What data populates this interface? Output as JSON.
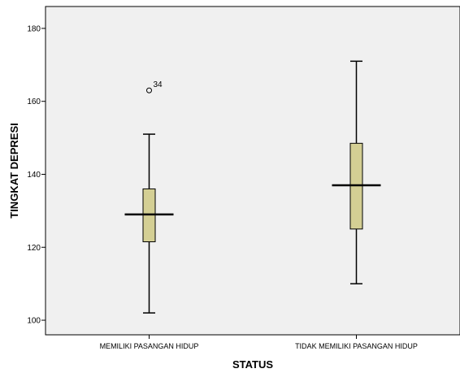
{
  "chart_data": {
    "type": "boxplot",
    "xlabel": "STATUS",
    "ylabel": "TINGKAT DEPRESI",
    "ylim": [
      96,
      186
    ],
    "yticks": [
      100,
      120,
      140,
      160,
      180
    ],
    "grid": false,
    "colors": {
      "plot_bg": "#f0f0f0",
      "box_fill": "#d4cf94",
      "stroke": "#000000"
    },
    "categories": [
      "MEMILIKI PASANGAN HIDUP",
      "TIDAK MEMILIKI PASANGAN HIDUP"
    ],
    "boxes": [
      {
        "category": "MEMILIKI PASANGAN HIDUP",
        "min": 102,
        "q1": 121.5,
        "median": 129,
        "q3": 136,
        "max": 151,
        "outliers": [
          {
            "value": 163,
            "label": "34"
          }
        ]
      },
      {
        "category": "TIDAK MEMILIKI PASANGAN HIDUP",
        "min": 110,
        "q1": 125,
        "median": 137,
        "q3": 148.5,
        "max": 171,
        "outliers": []
      }
    ]
  }
}
